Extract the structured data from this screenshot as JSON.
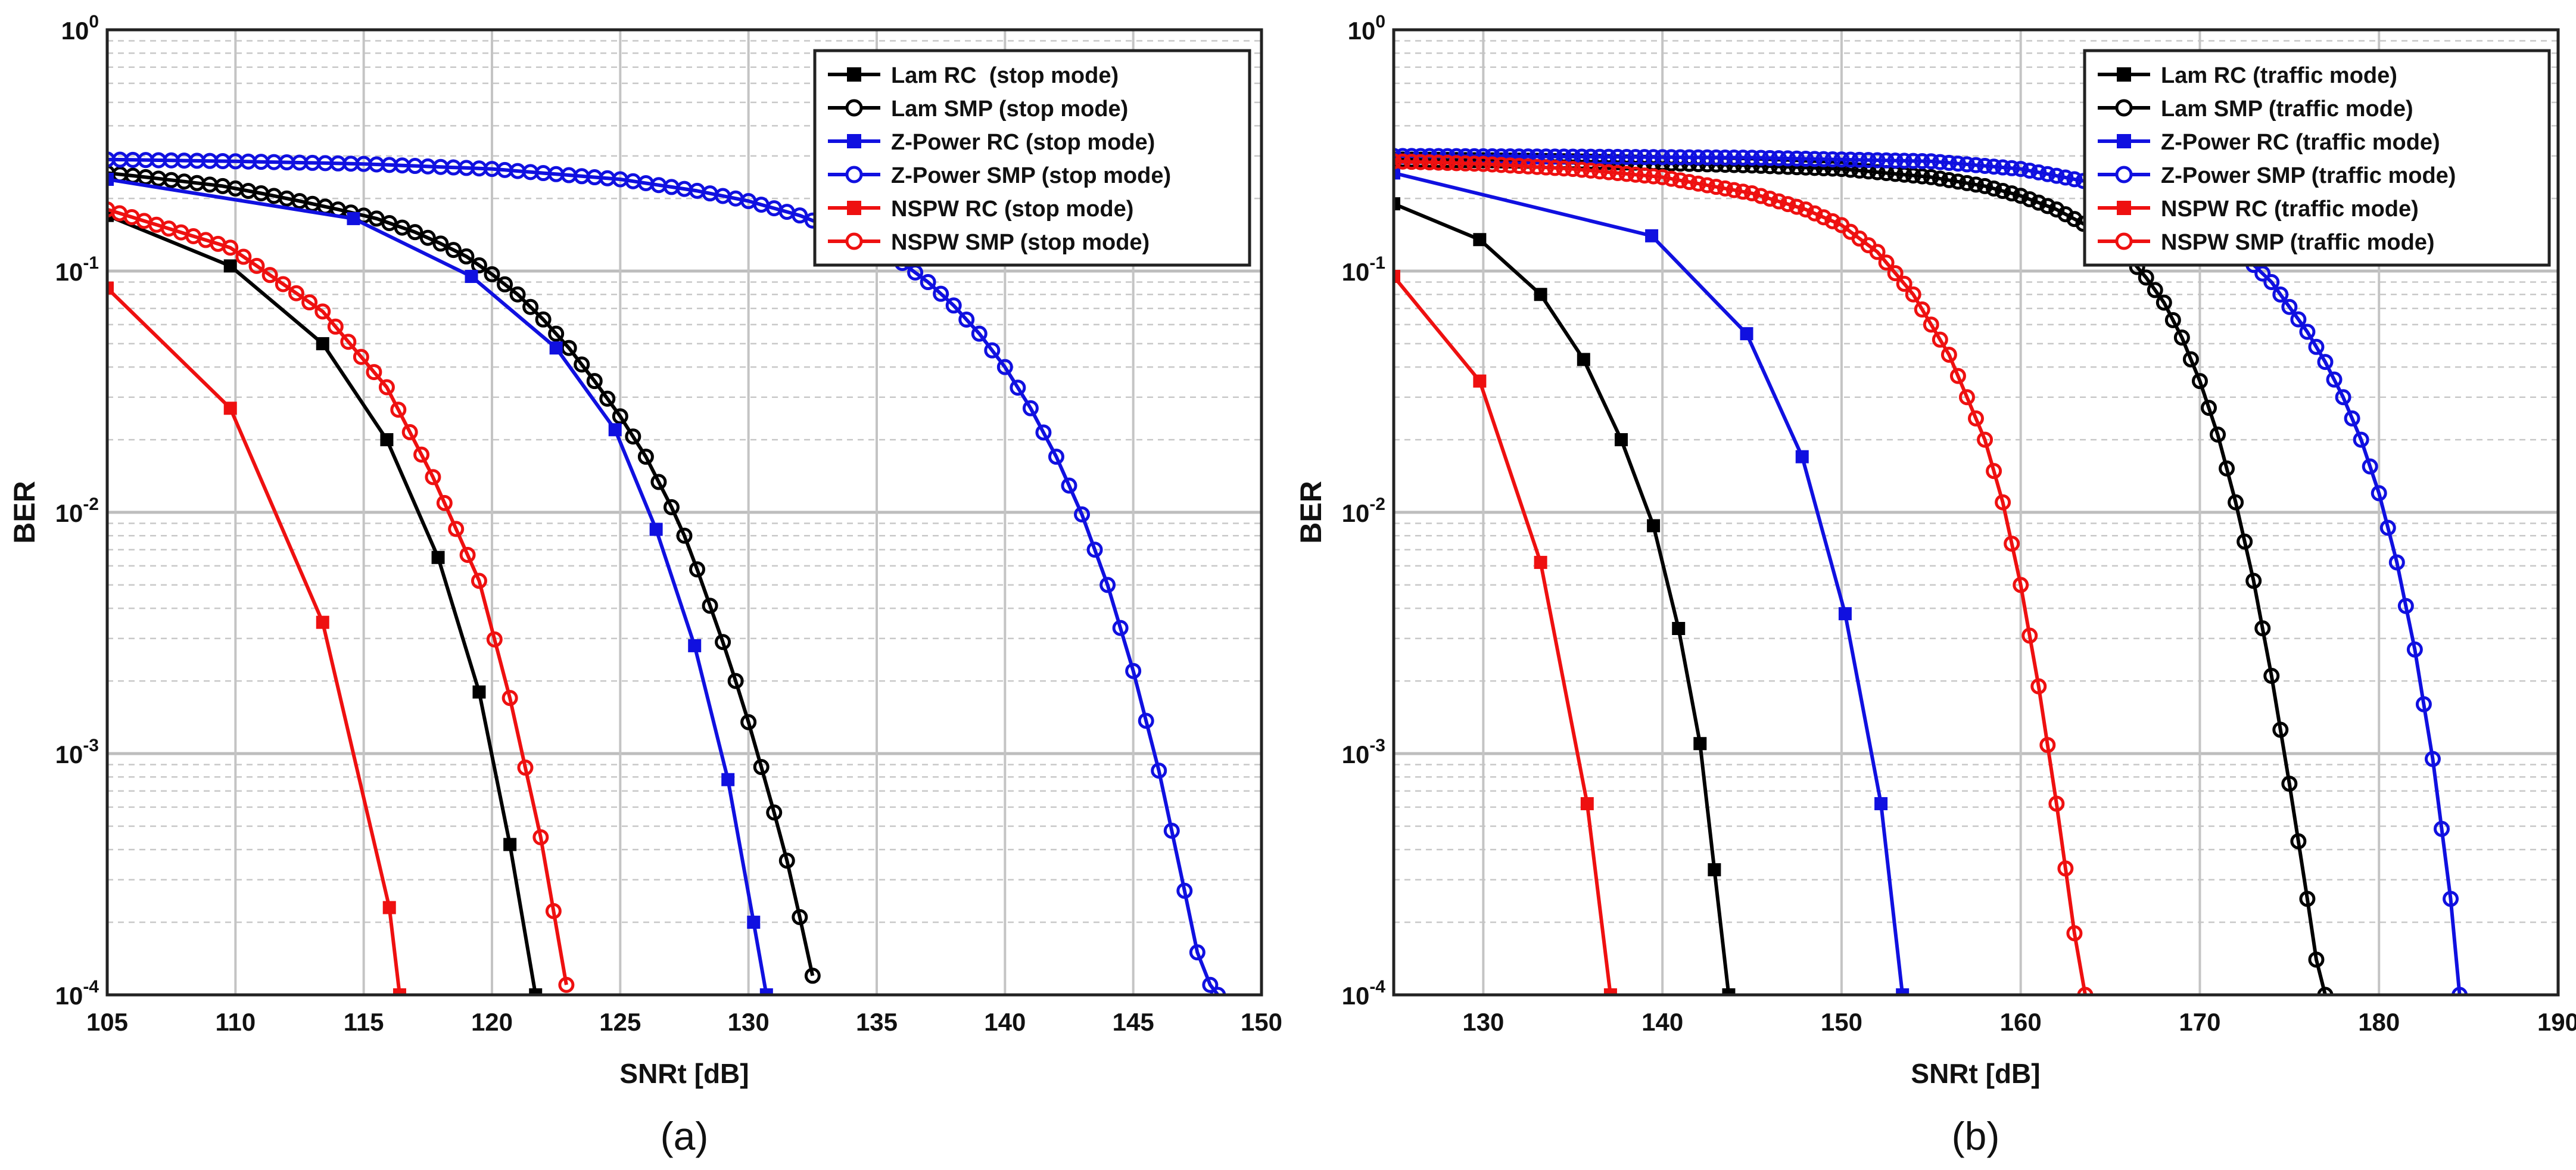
{
  "chart_data": [
    {
      "type": "line",
      "caption": "(a)",
      "xlabel": "SNRt [dB]",
      "ylabel": "BER",
      "yscale": "log",
      "xlim": [
        105,
        150
      ],
      "ylim": [
        0.0001,
        1
      ],
      "grid": true,
      "legend_position": "top-right",
      "x_ticks": [
        "105",
        "110",
        "115",
        "120",
        "125",
        "130",
        "135",
        "140",
        "145",
        "150"
      ],
      "y_ticks": [
        "10^-4",
        "10^-3",
        "10^-2",
        "10^-1",
        "10^0"
      ],
      "series": [
        {
          "name": "Lam RC  (stop mode)",
          "color": "#000000",
          "marker": "square",
          "x": [
            105,
            109.8,
            113.4,
            115.9,
            117.9,
            119.5,
            120.7,
            121.7
          ],
          "y": [
            0.17,
            0.105,
            0.05,
            0.02,
            0.0065,
            0.0018,
            0.00042,
            0.0001
          ]
        },
        {
          "name": "Lam SMP (stop mode)",
          "color": "#000000",
          "marker": "circle",
          "x": [
            105,
            106.5,
            108,
            109.5,
            111,
            112.5,
            114,
            115.5,
            117,
            118,
            119,
            120,
            121,
            122,
            123,
            124,
            125,
            126,
            127,
            127.5,
            128,
            128.5,
            129,
            129.5,
            130,
            130.5,
            131,
            131.5,
            132,
            132.5
          ],
          "y": [
            0.255,
            0.245,
            0.235,
            0.225,
            0.21,
            0.195,
            0.18,
            0.165,
            0.145,
            0.13,
            0.115,
            0.097,
            0.08,
            0.063,
            0.048,
            0.035,
            0.025,
            0.017,
            0.0105,
            0.008,
            0.0058,
            0.0041,
            0.0029,
            0.002,
            0.00135,
            0.00088,
            0.00057,
            0.00036,
            0.00021,
            0.00012
          ]
        },
        {
          "name": "Z-Power RC (stop mode)",
          "color": "#1010e0",
          "marker": "square",
          "x": [
            105,
            114.6,
            119.2,
            122.5,
            124.8,
            126.4,
            127.9,
            129.2,
            130.2,
            130.7
          ],
          "y": [
            0.24,
            0.165,
            0.095,
            0.048,
            0.022,
            0.0085,
            0.0028,
            0.00078,
            0.0002,
            0.0001
          ]
        },
        {
          "name": "Z-Power SMP (stop mode)",
          "color": "#1010e0",
          "marker": "circle",
          "x": [
            105,
            110,
            115,
            120,
            125,
            128,
            130,
            132,
            134,
            135,
            136,
            137,
            138,
            139,
            140,
            141,
            142,
            143,
            144,
            145,
            146,
            147,
            147.5,
            148,
            148.3
          ],
          "y": [
            0.29,
            0.285,
            0.278,
            0.265,
            0.24,
            0.215,
            0.195,
            0.17,
            0.14,
            0.125,
            0.108,
            0.09,
            0.072,
            0.055,
            0.04,
            0.027,
            0.017,
            0.0098,
            0.005,
            0.0022,
            0.00085,
            0.00027,
            0.00015,
            0.00011,
            0.0001
          ]
        },
        {
          "name": "NSPW RC (stop mode)",
          "color": "#ee1010",
          "marker": "square",
          "x": [
            105,
            109.8,
            113.4,
            116,
            116.4
          ],
          "y": [
            0.085,
            0.027,
            0.0035,
            0.00023,
            0.0001
          ]
        },
        {
          "name": "NSPW SMP (stop mode)",
          "color": "#ee1010",
          "marker": "circle",
          "x": [
            105,
            109.8,
            113.4,
            115.9,
            117.7,
            119.5,
            120.7,
            121.9,
            122.9
          ],
          "y": [
            0.18,
            0.125,
            0.068,
            0.033,
            0.014,
            0.0052,
            0.0017,
            0.00045,
            0.00011
          ]
        }
      ]
    },
    {
      "type": "line",
      "caption": "(b)",
      "xlabel": "SNRt [dB]",
      "ylabel": "BER",
      "yscale": "log",
      "xlim": [
        125,
        190
      ],
      "ylim": [
        0.0001,
        1
      ],
      "grid": true,
      "legend_position": "top-right",
      "x_ticks": [
        "130",
        "140",
        "150",
        "160",
        "170",
        "180",
        "190"
      ],
      "y_ticks": [
        "10^-4",
        "10^-3",
        "10^-2",
        "10^-1",
        "10^0"
      ],
      "series": [
        {
          "name": "Lam RC (traffic mode)",
          "color": "#000000",
          "marker": "square",
          "x": [
            125,
            129.8,
            133.2,
            135.6,
            137.7,
            139.5,
            140.9,
            142.1,
            142.9,
            143.7
          ],
          "y": [
            0.19,
            0.135,
            0.08,
            0.043,
            0.02,
            0.0088,
            0.0033,
            0.0011,
            0.00033,
            0.0001
          ]
        },
        {
          "name": "Lam SMP (traffic mode)",
          "color": "#000000",
          "marker": "circle",
          "x": [
            125,
            130,
            135,
            140,
            145,
            150,
            155,
            158,
            160,
            162,
            164,
            166,
            167,
            168,
            169,
            170,
            171,
            172,
            173,
            174,
            175,
            176,
            176.5,
            177
          ],
          "y": [
            0.29,
            0.288,
            0.285,
            0.28,
            0.274,
            0.265,
            0.245,
            0.225,
            0.205,
            0.18,
            0.15,
            0.115,
            0.094,
            0.074,
            0.053,
            0.035,
            0.021,
            0.011,
            0.0052,
            0.0021,
            0.00075,
            0.00025,
            0.00014,
            0.0001
          ]
        },
        {
          "name": "Z-Power RC (traffic mode)",
          "color": "#1010e0",
          "marker": "square",
          "x": [
            125,
            139.4,
            144.7,
            147.8,
            150.2,
            152.2,
            153.4
          ],
          "y": [
            0.255,
            0.14,
            0.055,
            0.017,
            0.0038,
            0.00062,
            0.0001
          ]
        },
        {
          "name": "Z-Power SMP (traffic mode)",
          "color": "#1010e0",
          "marker": "circle",
          "x": [
            125,
            135,
            145,
            155,
            160,
            165,
            168,
            170,
            172,
            174,
            176,
            177,
            178,
            179,
            180,
            181,
            182,
            183,
            184,
            184.5
          ],
          "y": [
            0.3,
            0.298,
            0.295,
            0.285,
            0.265,
            0.225,
            0.19,
            0.16,
            0.125,
            0.09,
            0.056,
            0.042,
            0.03,
            0.02,
            0.012,
            0.0062,
            0.0027,
            0.00095,
            0.00025,
            0.0001
          ]
        },
        {
          "name": "NSPW RC (traffic mode)",
          "color": "#ee1010",
          "marker": "square",
          "x": [
            125,
            129.8,
            133.2,
            135.8,
            137.1
          ],
          "y": [
            0.095,
            0.035,
            0.0062,
            0.00062,
            0.0001
          ]
        },
        {
          "name": "NSPW SMP (traffic mode)",
          "color": "#ee1010",
          "marker": "circle",
          "x": [
            125,
            130,
            135,
            140,
            145,
            148,
            150,
            152,
            154,
            156,
            158,
            159,
            160,
            161,
            162,
            163,
            163.6
          ],
          "y": [
            0.285,
            0.278,
            0.265,
            0.245,
            0.21,
            0.18,
            0.155,
            0.12,
            0.08,
            0.045,
            0.02,
            0.011,
            0.005,
            0.0019,
            0.00062,
            0.00018,
            0.0001
          ]
        }
      ]
    }
  ]
}
